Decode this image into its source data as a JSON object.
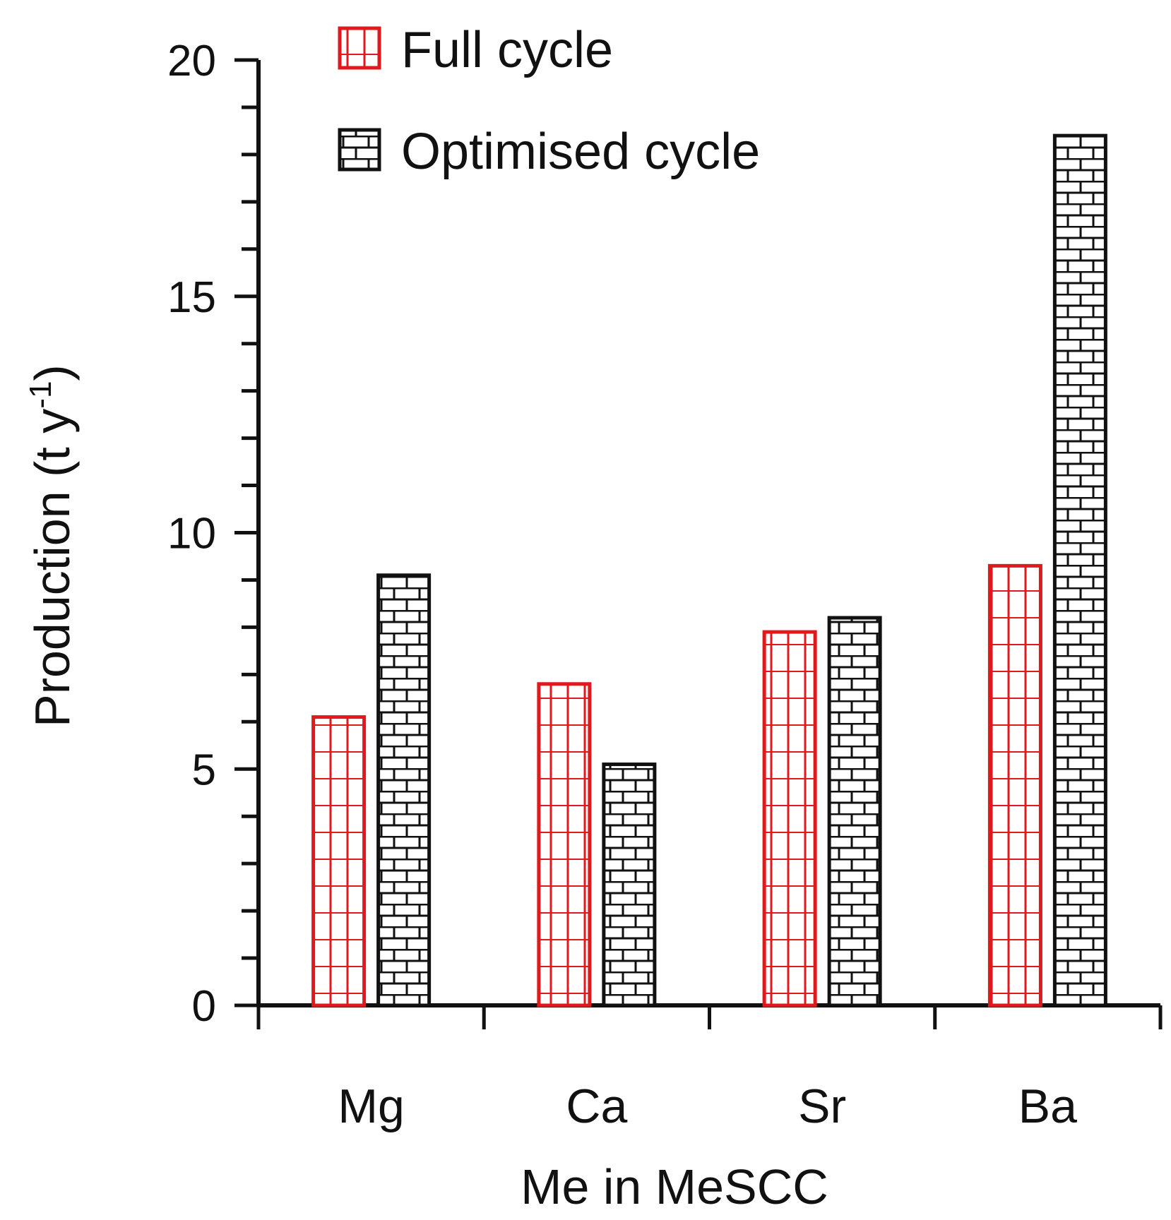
{
  "chart_data": {
    "type": "bar",
    "title": "",
    "xlabel": "Me in MeSCC",
    "ylabel_main": "Production (t y",
    "ylabel_sup": "-1",
    "ylabel_close": ")",
    "categories": [
      "Mg",
      "Ca",
      "Sr",
      "Ba"
    ],
    "series": [
      {
        "name": "Full cycle",
        "values": [
          6.1,
          6.8,
          7.9,
          9.3
        ],
        "color": "#e0191c",
        "pattern": "grid"
      },
      {
        "name": "Optimised cycle",
        "values": [
          9.1,
          5.1,
          8.2,
          18.4
        ],
        "color": "#111111",
        "pattern": "brick"
      }
    ],
    "ylim": [
      0,
      20
    ],
    "yticks": [
      "0",
      "5",
      "10",
      "15",
      "20"
    ],
    "grid": false,
    "legend_position": "top-left"
  }
}
